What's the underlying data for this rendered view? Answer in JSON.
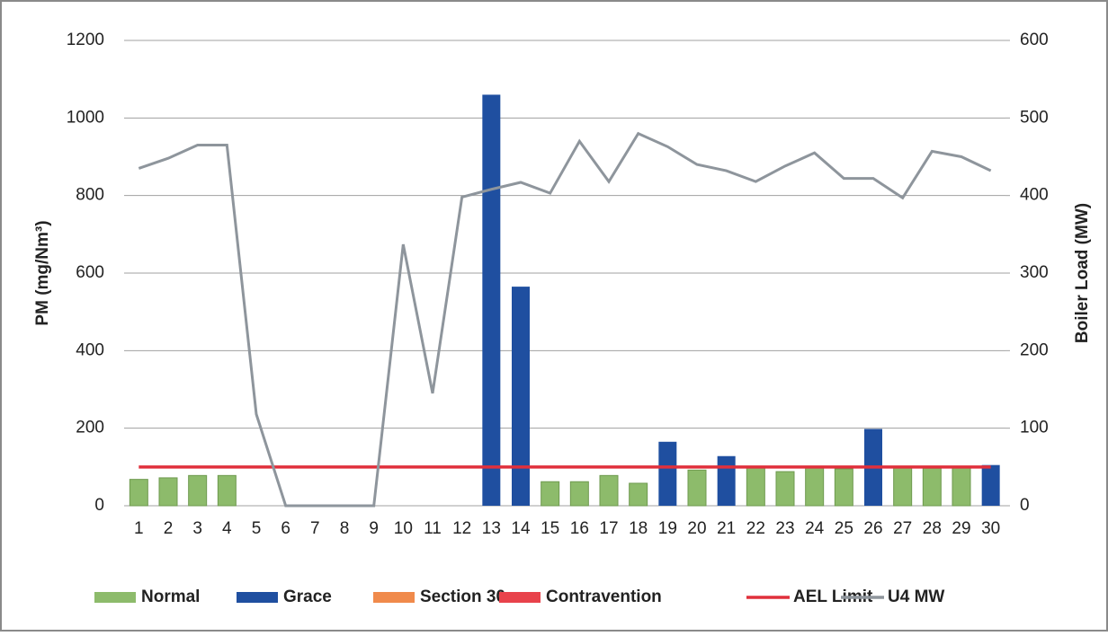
{
  "chart_data": {
    "type": "bar",
    "categories": [
      "1",
      "2",
      "3",
      "4",
      "5",
      "6",
      "7",
      "8",
      "9",
      "10",
      "11",
      "12",
      "13",
      "14",
      "15",
      "16",
      "17",
      "18",
      "19",
      "20",
      "21",
      "22",
      "23",
      "24",
      "25",
      "26",
      "27",
      "28",
      "29",
      "30"
    ],
    "ylabel": "PM (mg/Nm³)",
    "y2label": "Boiler Load (MW)",
    "ylim": [
      0,
      1200
    ],
    "yticks": [
      0,
      200,
      400,
      600,
      800,
      1000,
      1200
    ],
    "y2lim": [
      0,
      600
    ],
    "y2ticks": [
      0,
      100,
      200,
      300,
      400,
      500,
      600
    ],
    "grid": true,
    "legend": "bottom",
    "series": [
      {
        "name": "Normal",
        "type": "bar",
        "color": "#8dbb6b",
        "values": [
          68,
          72,
          78,
          78,
          null,
          null,
          null,
          null,
          null,
          null,
          null,
          null,
          null,
          null,
          62,
          62,
          78,
          58,
          null,
          92,
          null,
          100,
          88,
          100,
          95,
          null,
          98,
          97,
          100,
          null
        ]
      },
      {
        "name": "Grace",
        "type": "bar",
        "color": "#1f4fa0",
        "values": [
          null,
          null,
          null,
          null,
          null,
          null,
          null,
          null,
          null,
          null,
          null,
          null,
          1060,
          565,
          null,
          null,
          null,
          null,
          165,
          null,
          128,
          null,
          null,
          null,
          null,
          198,
          null,
          null,
          null,
          105
        ]
      },
      {
        "name": "Section 30",
        "type": "bar",
        "color": "#f08a4b",
        "values": [
          null,
          null,
          null,
          null,
          null,
          null,
          null,
          null,
          null,
          null,
          null,
          null,
          null,
          null,
          null,
          null,
          null,
          null,
          null,
          null,
          null,
          null,
          null,
          null,
          null,
          null,
          null,
          null,
          null,
          null
        ]
      },
      {
        "name": "Contravention",
        "type": "bar",
        "color": "#e8424b",
        "values": [
          null,
          null,
          null,
          null,
          null,
          null,
          null,
          null,
          null,
          null,
          null,
          null,
          null,
          null,
          null,
          null,
          null,
          null,
          null,
          null,
          null,
          null,
          null,
          null,
          null,
          null,
          null,
          null,
          null,
          null
        ]
      },
      {
        "name": "AEL Limit",
        "type": "line",
        "color": "#e0303c",
        "values": [
          100,
          100,
          100,
          100,
          100,
          100,
          100,
          100,
          100,
          100,
          100,
          100,
          100,
          100,
          100,
          100,
          100,
          100,
          100,
          100,
          100,
          100,
          100,
          100,
          100,
          100,
          100,
          100,
          100,
          100
        ]
      },
      {
        "name": "U4 MW",
        "type": "line",
        "axis": "y2",
        "color": "#8e959c",
        "values": [
          435,
          448,
          465,
          465,
          118,
          0,
          0,
          0,
          0,
          337,
          145,
          398,
          408,
          417,
          403,
          470,
          418,
          480,
          463,
          440,
          432,
          418,
          438,
          455,
          422,
          422,
          397,
          457,
          450,
          432
        ]
      }
    ]
  }
}
